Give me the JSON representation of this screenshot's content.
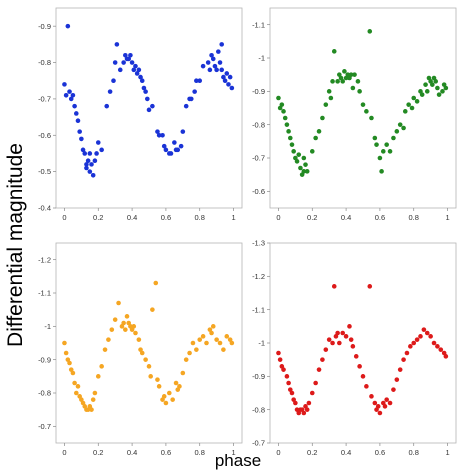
{
  "figure": {
    "ylabel": "Differential magnitude",
    "xlabel": "phase"
  },
  "chart_data": [
    {
      "type": "scatter",
      "color": "#1a33d6",
      "xlim": [
        -0.05,
        1.05
      ],
      "ylim": [
        -0.4,
        -0.95
      ],
      "inverted_y": true,
      "grid": false,
      "xticks": [
        "0",
        "0.2",
        "0.4",
        "0.6",
        "0.8",
        "1"
      ],
      "yticks": [
        "-0.4",
        "-0.5",
        "-0.6",
        "-0.7",
        "-0.8",
        "-0.9"
      ],
      "xtick_values": [
        0,
        0.2,
        0.4,
        0.6,
        0.8,
        1
      ],
      "ytick_values": [
        -0.4,
        -0.5,
        -0.6,
        -0.7,
        -0.8,
        -0.9
      ],
      "points": [
        [
          0.0,
          -0.74
        ],
        [
          0.01,
          -0.71
        ],
        [
          0.02,
          -0.9
        ],
        [
          0.03,
          -0.72
        ],
        [
          0.04,
          -0.7
        ],
        [
          0.05,
          -0.71
        ],
        [
          0.06,
          -0.68
        ],
        [
          0.07,
          -0.66
        ],
        [
          0.08,
          -0.64
        ],
        [
          0.09,
          -0.61
        ],
        [
          0.1,
          -0.59
        ],
        [
          0.11,
          -0.56
        ],
        [
          0.12,
          -0.55
        ],
        [
          0.13,
          -0.52
        ],
        [
          0.13,
          -0.51
        ],
        [
          0.14,
          -0.53
        ],
        [
          0.15,
          -0.5
        ],
        [
          0.15,
          -0.55
        ],
        [
          0.16,
          -0.52
        ],
        [
          0.17,
          -0.49
        ],
        [
          0.18,
          -0.53
        ],
        [
          0.19,
          -0.55
        ],
        [
          0.2,
          -0.58
        ],
        [
          0.22,
          -0.56
        ],
        [
          0.25,
          -0.68
        ],
        [
          0.27,
          -0.72
        ],
        [
          0.29,
          -0.75
        ],
        [
          0.3,
          -0.8
        ],
        [
          0.31,
          -0.85
        ],
        [
          0.33,
          -0.78
        ],
        [
          0.35,
          -0.8
        ],
        [
          0.36,
          -0.82
        ],
        [
          0.37,
          -0.81
        ],
        [
          0.38,
          -0.81
        ],
        [
          0.39,
          -0.82
        ],
        [
          0.4,
          -0.8
        ],
        [
          0.41,
          -0.78
        ],
        [
          0.42,
          -0.79
        ],
        [
          0.44,
          -0.78
        ],
        [
          0.45,
          -0.76
        ],
        [
          0.46,
          -0.75
        ],
        [
          0.47,
          -0.73
        ],
        [
          0.48,
          -0.72
        ],
        [
          0.49,
          -0.7
        ],
        [
          0.5,
          -0.67
        ],
        [
          0.52,
          -0.68
        ],
        [
          0.55,
          -0.61
        ],
        [
          0.56,
          -0.6
        ],
        [
          0.58,
          -0.6
        ],
        [
          0.59,
          -0.57
        ],
        [
          0.6,
          -0.56
        ],
        [
          0.62,
          -0.55
        ],
        [
          0.63,
          -0.55
        ],
        [
          0.65,
          -0.58
        ],
        [
          0.66,
          -0.56
        ],
        [
          0.67,
          -0.56
        ],
        [
          0.69,
          -0.57
        ],
        [
          0.7,
          -0.61
        ],
        [
          0.72,
          -0.68
        ],
        [
          0.74,
          -0.7
        ],
        [
          0.75,
          -0.7
        ],
        [
          0.77,
          -0.72
        ],
        [
          0.78,
          -0.75
        ],
        [
          0.8,
          -0.75
        ],
        [
          0.82,
          -0.79
        ],
        [
          0.85,
          -0.8
        ],
        [
          0.87,
          -0.82
        ],
        [
          0.88,
          -0.81
        ],
        [
          0.89,
          -0.79
        ],
        [
          0.9,
          -0.78
        ],
        [
          0.91,
          -0.83
        ],
        [
          0.92,
          -0.8
        ],
        [
          0.93,
          -0.78
        ],
        [
          0.94,
          -0.76
        ],
        [
          0.95,
          -0.75
        ],
        [
          0.96,
          -0.77
        ],
        [
          0.97,
          -0.74
        ],
        [
          0.98,
          -0.76
        ],
        [
          0.99,
          -0.73
        ],
        [
          0.93,
          -0.85
        ],
        [
          0.86,
          -0.78
        ],
        [
          0.43,
          -0.77
        ]
      ]
    },
    {
      "type": "scatter",
      "color": "#238a23",
      "xlim": [
        -0.05,
        1.05
      ],
      "ylim": [
        -0.55,
        -1.15
      ],
      "inverted_y": true,
      "grid": false,
      "xticks": [
        "0",
        "0.2",
        "0.4",
        "0.6",
        "0.8",
        "1"
      ],
      "yticks": [
        "-0.6",
        "-0.7",
        "-0.8",
        "-0.9",
        "-1",
        "-1.1"
      ],
      "xtick_values": [
        0,
        0.2,
        0.4,
        0.6,
        0.8,
        1
      ],
      "ytick_values": [
        -0.6,
        -0.7,
        -0.8,
        -0.9,
        -1.0,
        -1.1
      ],
      "points": [
        [
          0.0,
          -0.88
        ],
        [
          0.01,
          -0.85
        ],
        [
          0.02,
          -0.86
        ],
        [
          0.03,
          -0.84
        ],
        [
          0.04,
          -0.82
        ],
        [
          0.05,
          -0.8
        ],
        [
          0.06,
          -0.78
        ],
        [
          0.07,
          -0.76
        ],
        [
          0.08,
          -0.74
        ],
        [
          0.09,
          -0.72
        ],
        [
          0.1,
          -0.7
        ],
        [
          0.11,
          -0.69
        ],
        [
          0.12,
          -0.71
        ],
        [
          0.13,
          -0.67
        ],
        [
          0.14,
          -0.65
        ],
        [
          0.15,
          -0.66
        ],
        [
          0.16,
          -0.68
        ],
        [
          0.17,
          -0.66
        ],
        [
          0.15,
          -0.7
        ],
        [
          0.2,
          -0.72
        ],
        [
          0.22,
          -0.76
        ],
        [
          0.24,
          -0.78
        ],
        [
          0.26,
          -0.82
        ],
        [
          0.28,
          -0.86
        ],
        [
          0.3,
          -0.9
        ],
        [
          0.31,
          -0.88
        ],
        [
          0.32,
          -0.93
        ],
        [
          0.33,
          -1.02
        ],
        [
          0.35,
          -0.93
        ],
        [
          0.36,
          -0.95
        ],
        [
          0.37,
          -0.94
        ],
        [
          0.38,
          -0.93
        ],
        [
          0.39,
          -0.96
        ],
        [
          0.4,
          -0.94
        ],
        [
          0.41,
          -0.95
        ],
        [
          0.42,
          -0.94
        ],
        [
          0.43,
          -0.95
        ],
        [
          0.44,
          -0.91
        ],
        [
          0.45,
          -0.95
        ],
        [
          0.47,
          -0.93
        ],
        [
          0.48,
          -0.9
        ],
        [
          0.5,
          -0.86
        ],
        [
          0.52,
          -0.84
        ],
        [
          0.54,
          -1.08
        ],
        [
          0.55,
          -0.82
        ],
        [
          0.57,
          -0.76
        ],
        [
          0.58,
          -0.74
        ],
        [
          0.6,
          -0.7
        ],
        [
          0.61,
          -0.66
        ],
        [
          0.62,
          -0.72
        ],
        [
          0.64,
          -0.74
        ],
        [
          0.66,
          -0.72
        ],
        [
          0.68,
          -0.76
        ],
        [
          0.7,
          -0.78
        ],
        [
          0.72,
          -0.8
        ],
        [
          0.74,
          -0.79
        ],
        [
          0.75,
          -0.84
        ],
        [
          0.77,
          -0.86
        ],
        [
          0.79,
          -0.85
        ],
        [
          0.8,
          -0.88
        ],
        [
          0.82,
          -0.87
        ],
        [
          0.84,
          -0.9
        ],
        [
          0.85,
          -0.89
        ],
        [
          0.87,
          -0.92
        ],
        [
          0.88,
          -0.9
        ],
        [
          0.89,
          -0.94
        ],
        [
          0.9,
          -0.93
        ],
        [
          0.91,
          -0.92
        ],
        [
          0.92,
          -0.94
        ],
        [
          0.93,
          -0.93
        ],
        [
          0.94,
          -0.91
        ],
        [
          0.95,
          -0.89
        ],
        [
          0.97,
          -0.9
        ],
        [
          0.98,
          -0.92
        ],
        [
          0.99,
          -0.91
        ]
      ]
    },
    {
      "type": "scatter",
      "color": "#f5a623",
      "xlim": [
        -0.05,
        1.05
      ],
      "ylim": [
        -0.65,
        -1.25
      ],
      "inverted_y": true,
      "grid": false,
      "xticks": [
        "0",
        "0.2",
        "0.4",
        "0.6",
        "0.8",
        "1"
      ],
      "yticks": [
        "-0.7",
        "-0.8",
        "-0.9",
        "-1",
        "-1.1",
        "-1.2"
      ],
      "xtick_values": [
        0,
        0.2,
        0.4,
        0.6,
        0.8,
        1
      ],
      "ytick_values": [
        -0.7,
        -0.8,
        -0.9,
        -1.0,
        -1.1,
        -1.2
      ],
      "points": [
        [
          0.0,
          -0.95
        ],
        [
          0.01,
          -0.92
        ],
        [
          0.02,
          -0.9
        ],
        [
          0.03,
          -0.89
        ],
        [
          0.04,
          -0.87
        ],
        [
          0.05,
          -0.86
        ],
        [
          0.06,
          -0.83
        ],
        [
          0.07,
          -0.8
        ],
        [
          0.08,
          -0.82
        ],
        [
          0.09,
          -0.79
        ],
        [
          0.1,
          -0.78
        ],
        [
          0.11,
          -0.77
        ],
        [
          0.12,
          -0.76
        ],
        [
          0.13,
          -0.75
        ],
        [
          0.14,
          -0.75
        ],
        [
          0.15,
          -0.76
        ],
        [
          0.16,
          -0.75
        ],
        [
          0.17,
          -0.78
        ],
        [
          0.18,
          -0.8
        ],
        [
          0.2,
          -0.85
        ],
        [
          0.22,
          -0.88
        ],
        [
          0.24,
          -0.93
        ],
        [
          0.26,
          -0.96
        ],
        [
          0.28,
          -0.99
        ],
        [
          0.3,
          -1.02
        ],
        [
          0.32,
          -1.07
        ],
        [
          0.34,
          -1.0
        ],
        [
          0.35,
          -1.01
        ],
        [
          0.36,
          -0.99
        ],
        [
          0.37,
          -1.03
        ],
        [
          0.38,
          -1.01
        ],
        [
          0.39,
          -1.0
        ],
        [
          0.4,
          -0.99
        ],
        [
          0.41,
          -1.0
        ],
        [
          0.42,
          -0.98
        ],
        [
          0.44,
          -0.96
        ],
        [
          0.45,
          -0.93
        ],
        [
          0.46,
          -0.92
        ],
        [
          0.48,
          -0.9
        ],
        [
          0.5,
          -0.88
        ],
        [
          0.51,
          -0.85
        ],
        [
          0.52,
          -1.05
        ],
        [
          0.54,
          -1.13
        ],
        [
          0.55,
          -0.84
        ],
        [
          0.56,
          -0.82
        ],
        [
          0.58,
          -0.78
        ],
        [
          0.59,
          -0.79
        ],
        [
          0.6,
          -0.77
        ],
        [
          0.62,
          -0.8
        ],
        [
          0.64,
          -0.78
        ],
        [
          0.66,
          -0.83
        ],
        [
          0.67,
          -0.81
        ],
        [
          0.68,
          -0.82
        ],
        [
          0.7,
          -0.86
        ],
        [
          0.72,
          -0.9
        ],
        [
          0.74,
          -0.92
        ],
        [
          0.76,
          -0.95
        ],
        [
          0.78,
          -0.93
        ],
        [
          0.8,
          -0.96
        ],
        [
          0.82,
          -0.97
        ],
        [
          0.84,
          -0.95
        ],
        [
          0.86,
          -0.99
        ],
        [
          0.87,
          -0.98
        ],
        [
          0.88,
          -1.0
        ],
        [
          0.9,
          -0.96
        ],
        [
          0.92,
          -0.95
        ],
        [
          0.94,
          -0.93
        ],
        [
          0.96,
          -0.97
        ],
        [
          0.98,
          -0.96
        ],
        [
          0.99,
          -0.95
        ]
      ]
    },
    {
      "type": "scatter",
      "color": "#dd1a1a",
      "xlim": [
        -0.05,
        1.05
      ],
      "ylim": [
        -0.7,
        -1.3
      ],
      "inverted_y": true,
      "grid": false,
      "xticks": [
        "0",
        "0.2",
        "0.4",
        "0.6",
        "0.8",
        "1"
      ],
      "yticks": [
        "-0.7",
        "-0.8",
        "-0.9",
        "-1",
        "-1.1",
        "-1.2",
        "-1.3"
      ],
      "xtick_values": [
        0,
        0.2,
        0.4,
        0.6,
        0.8,
        1
      ],
      "ytick_values": [
        -0.7,
        -0.8,
        -0.9,
        -1.0,
        -1.1,
        -1.2,
        -1.3
      ],
      "points": [
        [
          0.0,
          -0.97
        ],
        [
          0.01,
          -0.95
        ],
        [
          0.02,
          -0.93
        ],
        [
          0.03,
          -0.92
        ],
        [
          0.05,
          -0.9
        ],
        [
          0.06,
          -0.88
        ],
        [
          0.07,
          -0.86
        ],
        [
          0.08,
          -0.85
        ],
        [
          0.09,
          -0.83
        ],
        [
          0.1,
          -0.82
        ],
        [
          0.11,
          -0.8
        ],
        [
          0.12,
          -0.79
        ],
        [
          0.13,
          -0.8
        ],
        [
          0.14,
          -0.8
        ],
        [
          0.15,
          -0.79
        ],
        [
          0.16,
          -0.81
        ],
        [
          0.17,
          -0.8
        ],
        [
          0.18,
          -0.82
        ],
        [
          0.2,
          -0.85
        ],
        [
          0.22,
          -0.88
        ],
        [
          0.24,
          -0.92
        ],
        [
          0.26,
          -0.95
        ],
        [
          0.28,
          -0.98
        ],
        [
          0.3,
          -1.01
        ],
        [
          0.32,
          -1.0
        ],
        [
          0.33,
          -1.17
        ],
        [
          0.34,
          -1.02
        ],
        [
          0.35,
          -1.03
        ],
        [
          0.36,
          -1.0
        ],
        [
          0.38,
          -1.03
        ],
        [
          0.4,
          -1.02
        ],
        [
          0.42,
          -1.05
        ],
        [
          0.43,
          -1.01
        ],
        [
          0.44,
          -0.99
        ],
        [
          0.46,
          -0.96
        ],
        [
          0.48,
          -0.93
        ],
        [
          0.5,
          -0.9
        ],
        [
          0.52,
          -0.87
        ],
        [
          0.54,
          -1.17
        ],
        [
          0.55,
          -0.84
        ],
        [
          0.57,
          -0.82
        ],
        [
          0.58,
          -0.8
        ],
        [
          0.59,
          -0.81
        ],
        [
          0.6,
          -0.79
        ],
        [
          0.62,
          -0.82
        ],
        [
          0.63,
          -0.81
        ],
        [
          0.64,
          -0.83
        ],
        [
          0.66,
          -0.82
        ],
        [
          0.68,
          -0.86
        ],
        [
          0.7,
          -0.89
        ],
        [
          0.72,
          -0.92
        ],
        [
          0.74,
          -0.95
        ],
        [
          0.76,
          -0.97
        ],
        [
          0.78,
          -0.99
        ],
        [
          0.8,
          -1.0
        ],
        [
          0.82,
          -1.01
        ],
        [
          0.84,
          -1.02
        ],
        [
          0.86,
          -1.04
        ],
        [
          0.88,
          -1.03
        ],
        [
          0.9,
          -1.02
        ],
        [
          0.92,
          -1.0
        ],
        [
          0.94,
          -0.99
        ],
        [
          0.96,
          -0.98
        ],
        [
          0.98,
          -0.97
        ],
        [
          0.99,
          -0.96
        ]
      ]
    }
  ]
}
